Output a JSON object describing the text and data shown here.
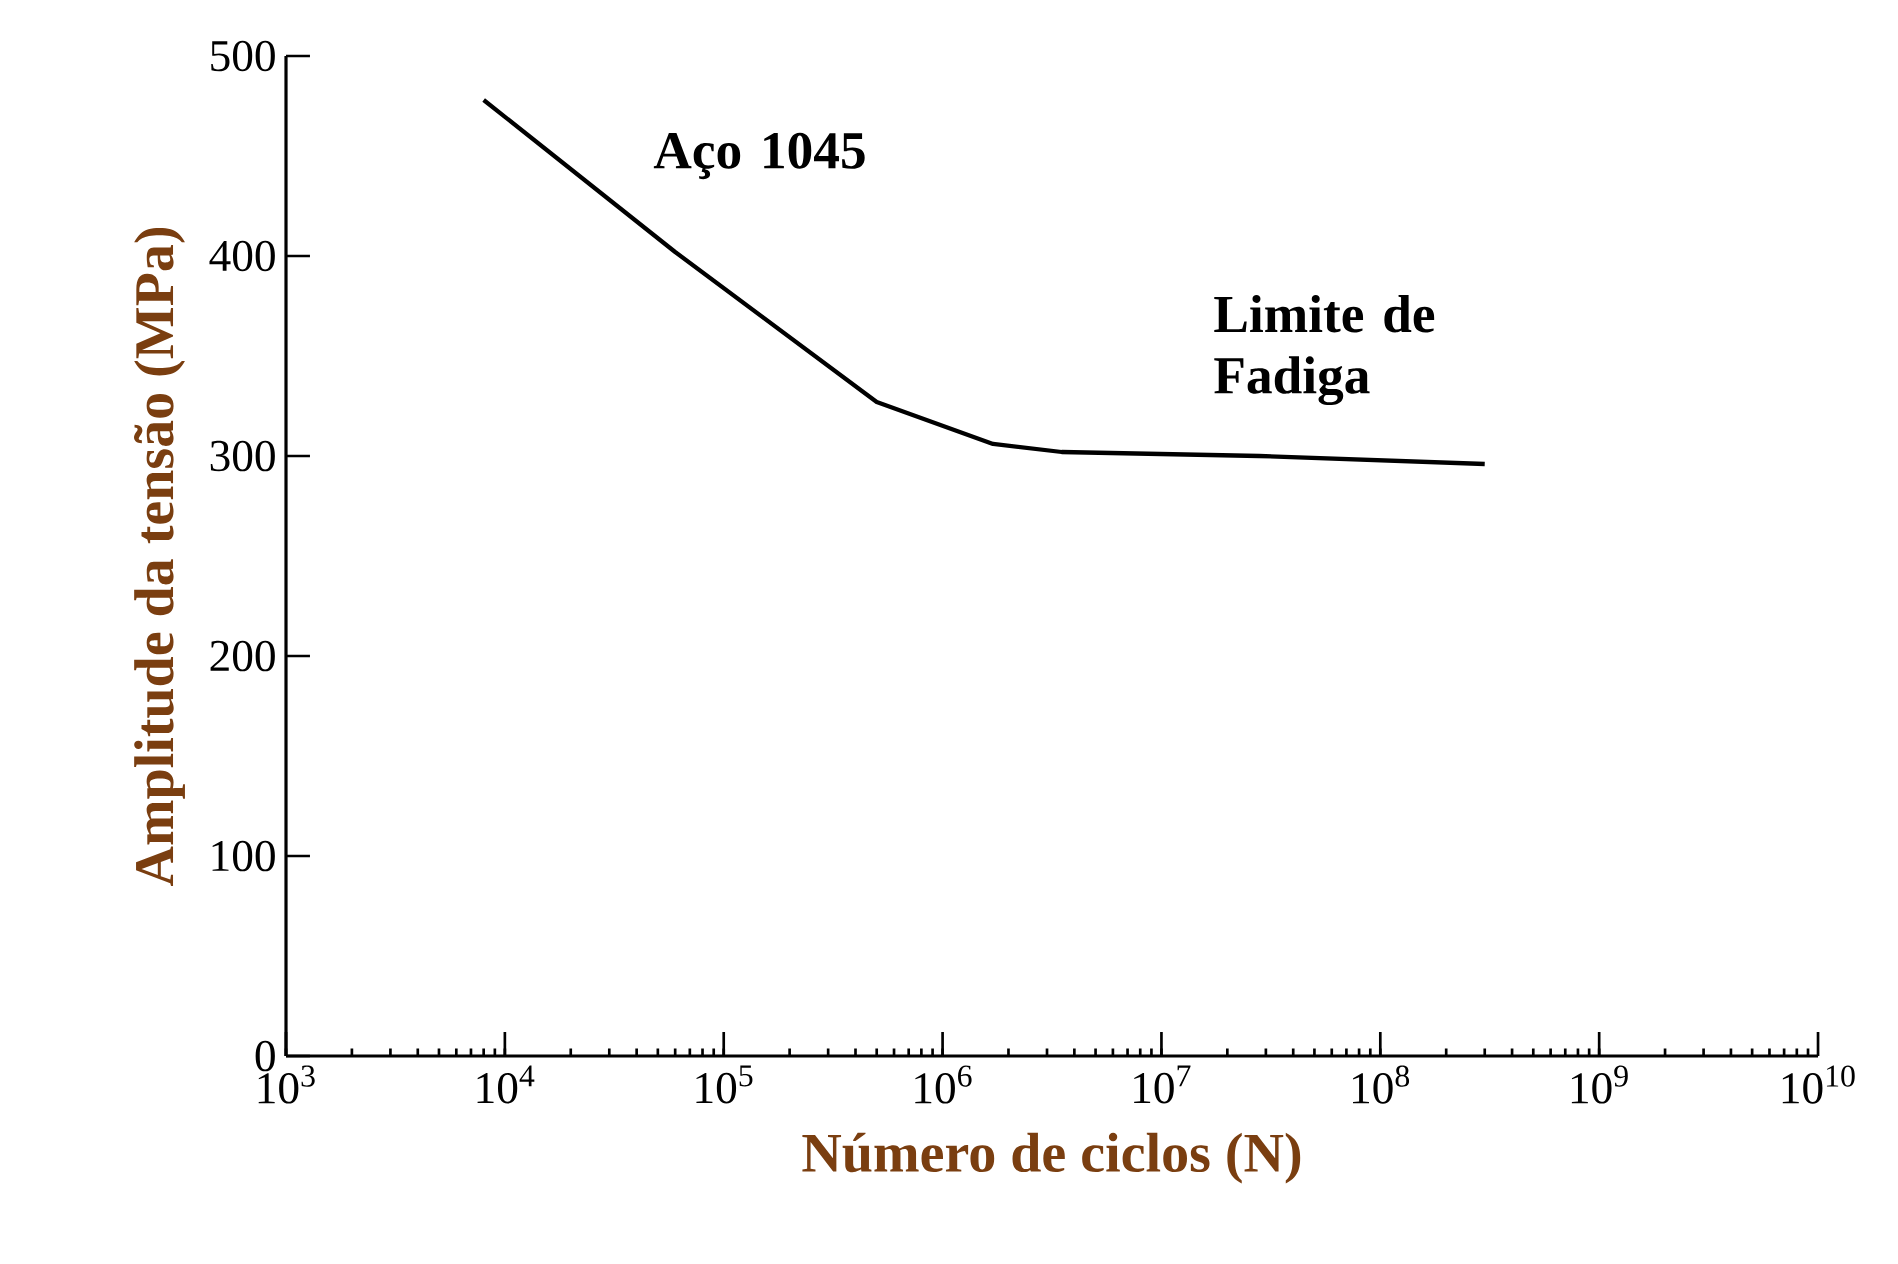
{
  "chart_data": {
    "type": "line",
    "xlabel": "Número de ciclos (N)",
    "ylabel": "Amplitude da tensão (MPa)",
    "log": "x",
    "xlim": [
      1000,
      10000000000
    ],
    "ylim": [
      0,
      500
    ],
    "xticks": [
      {
        "value": 1000,
        "label": "10$^{3}$"
      },
      {
        "value": 10000,
        "label": "10$^{4}$"
      },
      {
        "value": 100000,
        "label": "10$^{5}$"
      },
      {
        "value": 1000000,
        "label": "10$^{6}$"
      },
      {
        "value": 10000000,
        "label": "10$^{7}$"
      },
      {
        "value": 100000000,
        "label": "10$^{8}$"
      },
      {
        "value": 1000000000,
        "label": "10$^{9}$"
      },
      {
        "value": 10000000000,
        "label": "10$^{10}$"
      }
    ],
    "yticks": [
      0,
      100,
      200,
      300,
      400,
      500
    ],
    "series": [
      {
        "color": "#000000",
        "x": [
          8000,
          60000,
          500000,
          1700000,
          3500000,
          28000000,
          300000000
        ],
        "values": [
          478,
          402,
          327,
          306,
          302,
          300,
          296
        ]
      }
    ],
    "annotations": [
      "Aço 1045",
      "Limite de Fadiga"
    ],
    "grid": false
  }
}
